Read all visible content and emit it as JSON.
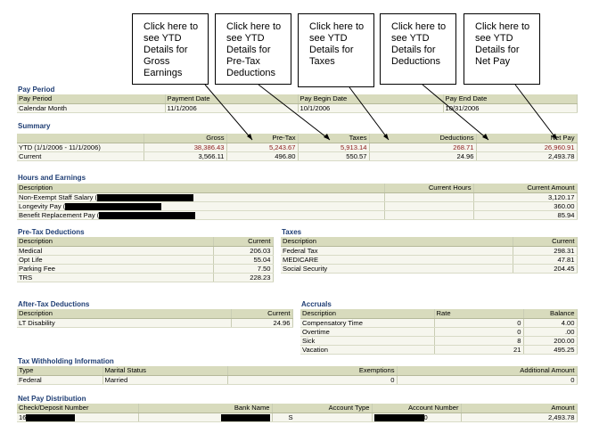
{
  "callouts": {
    "gross": "Click here to see YTD Details for Gross Earnings",
    "pretax": "Click here to see YTD Details for Pre-Tax Deductions",
    "taxes": "Click here to see YTD Details for Taxes",
    "deductions": "Click here to see YTD Details for Deductions",
    "netpay": "Click here to see YTD Details for Net Pay"
  },
  "pay_period": {
    "title": "Pay Period",
    "headers": [
      "Pay Period",
      "Payment Date",
      "Pay Begin Date",
      "Pay End Date"
    ],
    "row": [
      "Calendar Month",
      "11/1/2006",
      "10/1/2006",
      "10/31/2006"
    ]
  },
  "summary": {
    "title": "Summary",
    "headers": [
      "Gross",
      "Pre-Tax",
      "Taxes",
      "Deductions",
      "Net Pay"
    ],
    "ytd_label": "YTD (1/1/2006 - 11/1/2006)",
    "ytd": [
      "38,386.43",
      "5,243.67",
      "5,913.14",
      "268.71",
      "26,960.91"
    ],
    "current_label": "Current",
    "current": [
      "3,566.11",
      "496.80",
      "550.57",
      "24.96",
      "2,493.78"
    ]
  },
  "hours_earnings": {
    "title": "Hours and Earnings",
    "headers": [
      "Description",
      "Current Hours",
      "Current Amount"
    ],
    "rows": [
      {
        "desc": "Non-Exempt Staff Salary (",
        "hours": "",
        "amount": "3,120.17"
      },
      {
        "desc": "Longevity Pay (",
        "hours": "",
        "amount": "360.00"
      },
      {
        "desc": "Benefit Replacement Pay (",
        "hours": "",
        "amount": "85.94"
      }
    ]
  },
  "pretax_deductions": {
    "title": "Pre-Tax Deductions",
    "headers": [
      "Description",
      "Current"
    ],
    "rows": [
      [
        "Medical",
        "206.03"
      ],
      [
        "Opt Life",
        "55.04"
      ],
      [
        "Parking Fee",
        "7.50"
      ],
      [
        "TRS",
        "228.23"
      ]
    ]
  },
  "taxes": {
    "title": "Taxes",
    "headers": [
      "Description",
      "Current"
    ],
    "rows": [
      [
        "Federal Tax",
        "298.31"
      ],
      [
        "MEDICARE",
        "47.81"
      ],
      [
        "Social Security",
        "204.45"
      ]
    ]
  },
  "aftertax_deductions": {
    "title": "After-Tax Deductions",
    "headers": [
      "Description",
      "Current"
    ],
    "rows": [
      [
        "LT Disability",
        "24.96"
      ]
    ]
  },
  "accruals": {
    "title": "Accruals",
    "headers": [
      "Description",
      "Rate",
      "Balance"
    ],
    "rows": [
      [
        "Compensatory Time",
        "0",
        "4.00"
      ],
      [
        "Overtime",
        "0",
        ".00"
      ],
      [
        "Sick",
        "8",
        "200.00"
      ],
      [
        "Vacation",
        "21",
        "495.25"
      ]
    ]
  },
  "tax_withholding": {
    "title": "Tax Withholding Information",
    "headers": [
      "Type",
      "Marital Status",
      "Exemptions",
      "Additional Amount"
    ],
    "row": [
      "Federal",
      "Married",
      "0",
      "0"
    ]
  },
  "net_pay_distribution": {
    "title": "Net Pay Distribution",
    "headers": [
      "Check/Deposit Number",
      "Bank Name",
      "Account Type",
      "Account Number",
      "Amount"
    ],
    "row": {
      "check_prefix": "16",
      "account_type": "S",
      "account_suffix": "0",
      "amount": "2,493.78"
    }
  },
  "colors": {
    "section_title": "#1f3e74",
    "header_bg": "#d8dbbd",
    "row_bg": "#f6f6ee",
    "ytd_text": "#8a1a1a"
  }
}
